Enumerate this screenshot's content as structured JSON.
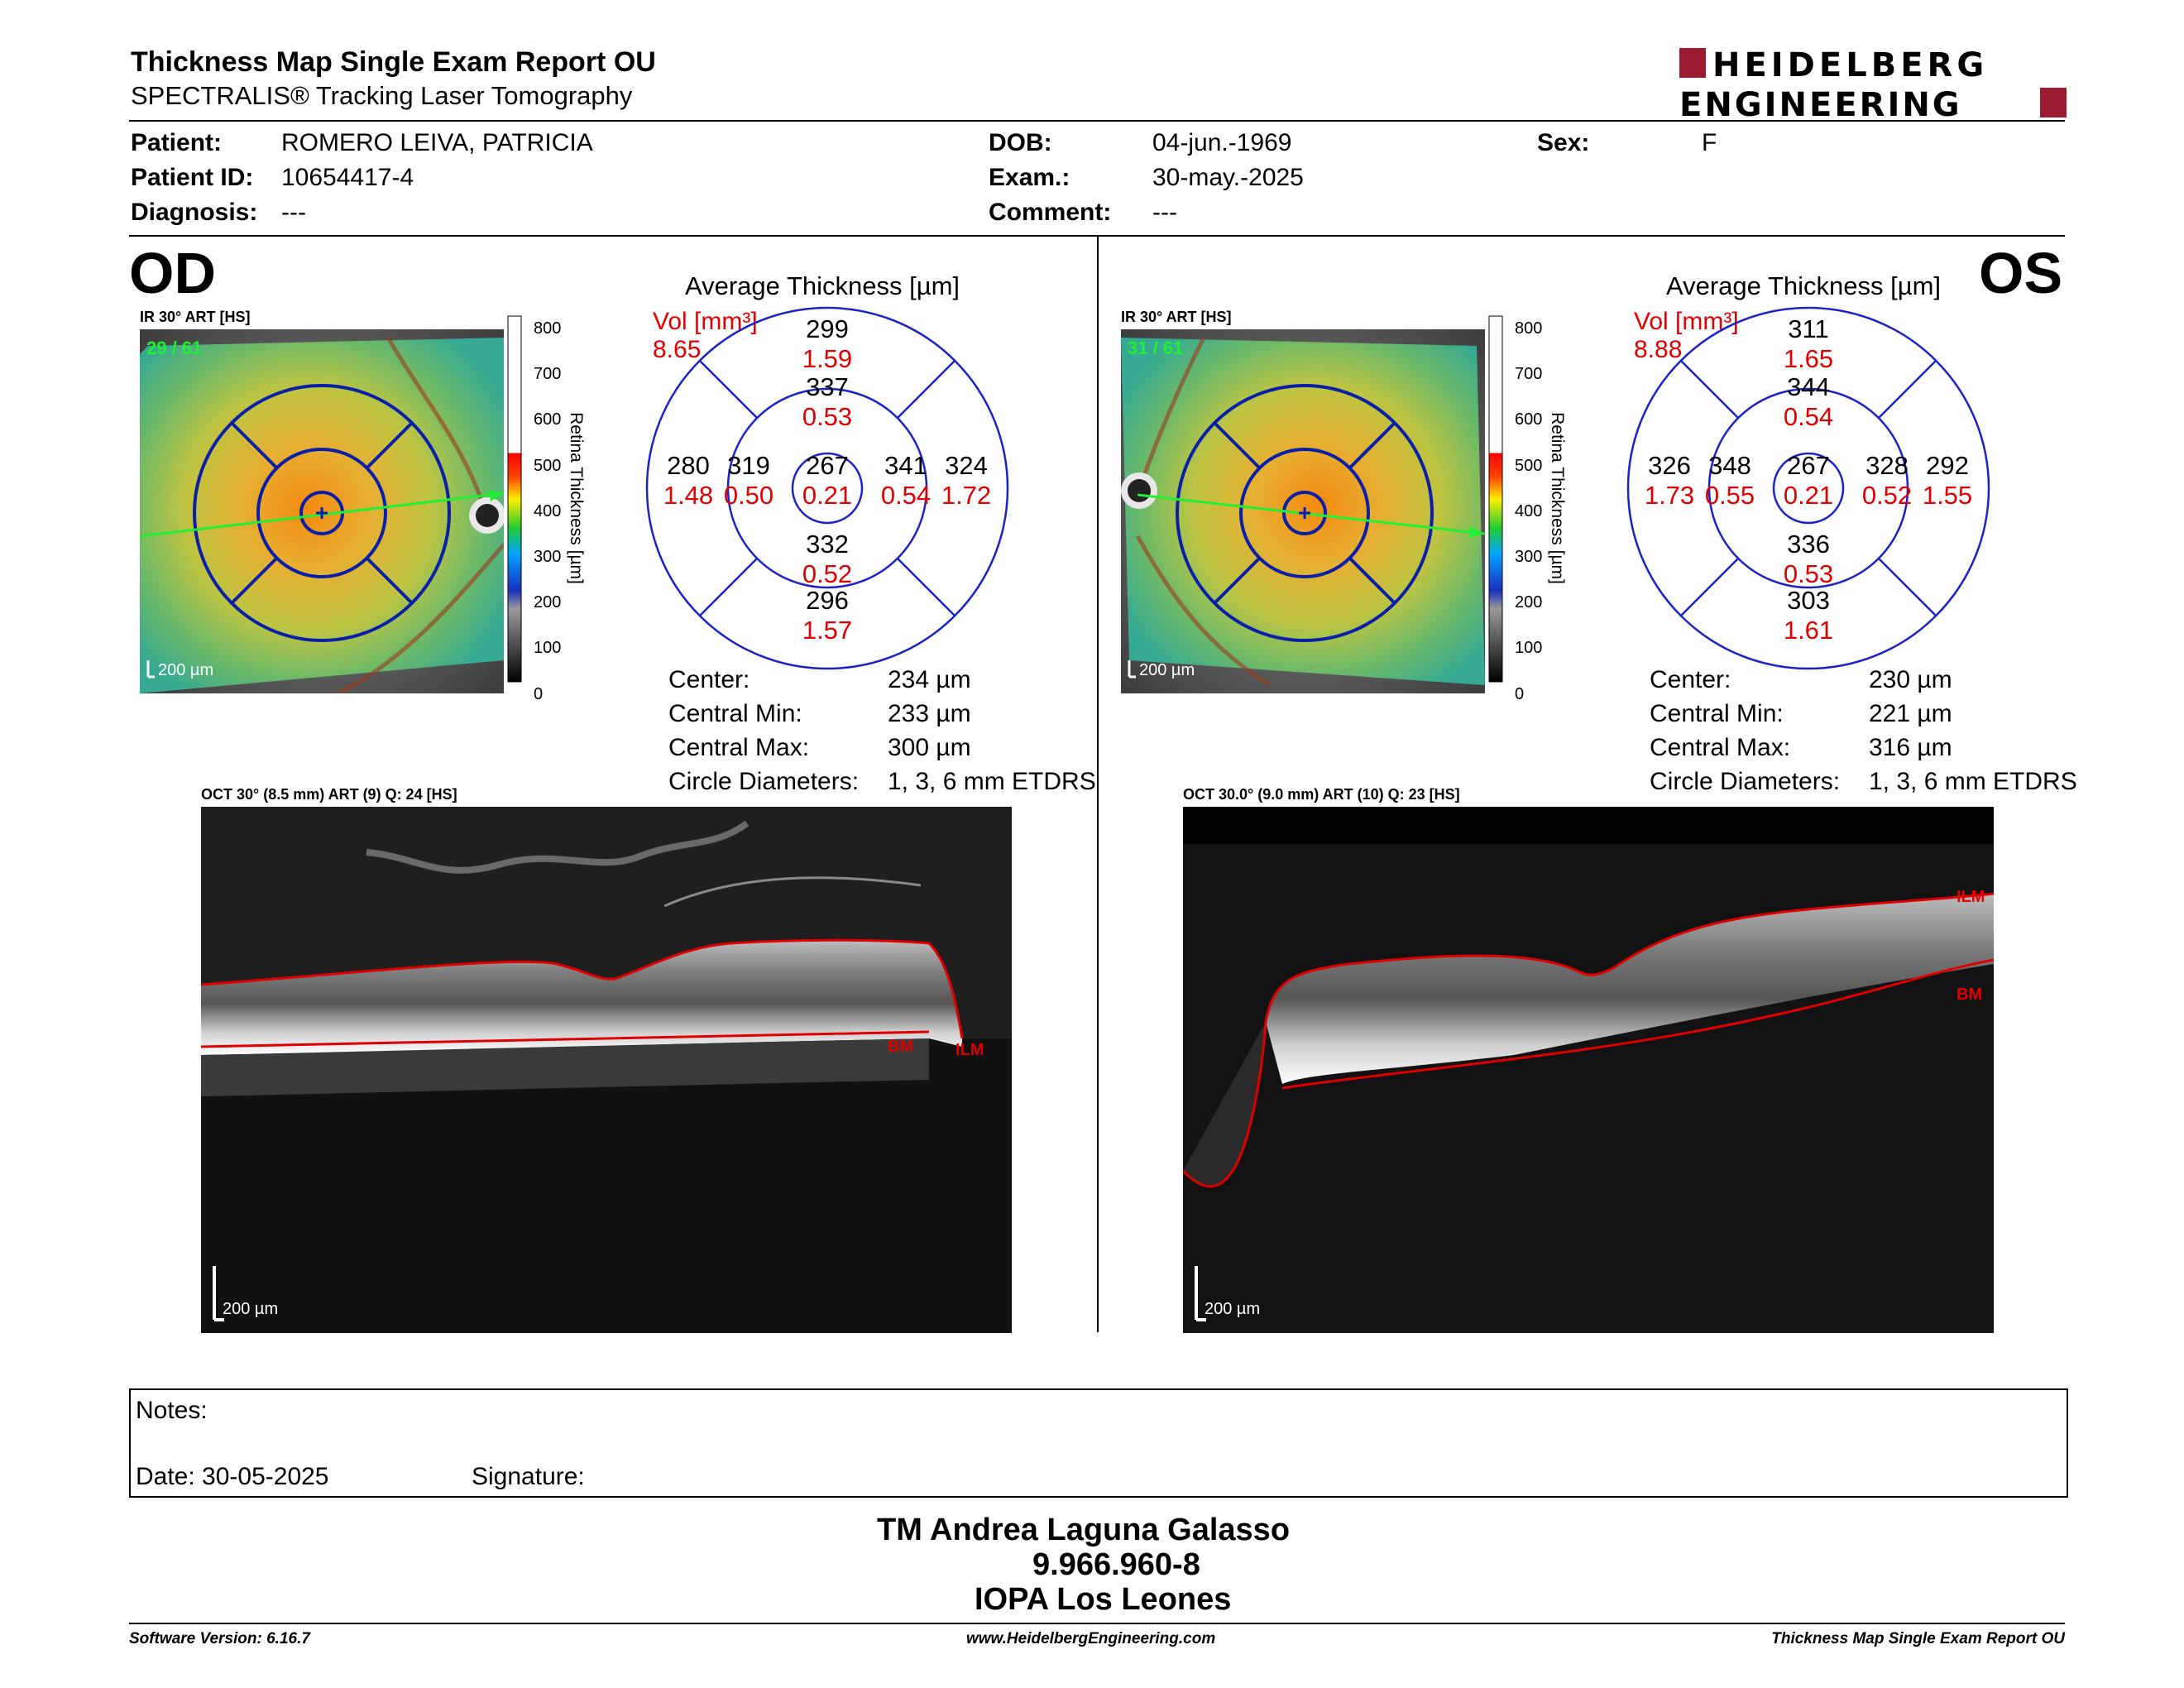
{
  "header": {
    "title": "Thickness Map Single Exam Report OU",
    "subtitle": "SPECTRALIS® Tracking Laser Tomography",
    "logo_line1": "HEIDELBERG",
    "logo_line2": "ENGINEERING",
    "logo_color": "#9b1b30"
  },
  "patient": {
    "patient_label": "Patient:",
    "patient_value": "ROMERO LEIVA, PATRICIA",
    "id_label": "Patient ID:",
    "id_value": "10654417-4",
    "diagnosis_label": "Diagnosis:",
    "diagnosis_value": "---",
    "dob_label": "DOB:",
    "dob_value": "04-jun.-1969",
    "exam_label": "Exam.:",
    "exam_value": "30-may.-2025",
    "comment_label": "Comment:",
    "comment_value": "---",
    "sex_label": "Sex:",
    "sex_value": "F"
  },
  "od": {
    "eye_label": "OD",
    "ir_caption": "IR 30° ART [HS]",
    "ir_counter": "29 / 61",
    "ir_scale": "200 µm",
    "colorbar_ticks": [
      "800",
      "700",
      "600",
      "500",
      "400",
      "300",
      "200",
      "100",
      "0"
    ],
    "colorbar_title": "Retina Thickness [µm]",
    "avg_title": "Average Thickness [µm]",
    "vol_label": "Vol [mm³]",
    "vol_total": "8.65",
    "grid": {
      "outer_top": {
        "t": "299",
        "v": "1.59"
      },
      "inner_top": {
        "t": "337",
        "v": "0.53"
      },
      "outer_left": {
        "t": "280",
        "v": "1.48"
      },
      "inner_left": {
        "t": "319",
        "v": "0.50"
      },
      "center": {
        "t": "267",
        "v": "0.21"
      },
      "inner_right": {
        "t": "341",
        "v": "0.54"
      },
      "outer_right": {
        "t": "324",
        "v": "1.72"
      },
      "inner_bottom": {
        "t": "332",
        "v": "0.52"
      },
      "outer_bottom": {
        "t": "296",
        "v": "1.57"
      }
    },
    "stats": [
      {
        "k": "Center:",
        "v": "234 µm"
      },
      {
        "k": "Central Min:",
        "v": "233 µm"
      },
      {
        "k": "Central Max:",
        "v": "300 µm"
      },
      {
        "k": "Circle Diameters:",
        "v": "1, 3, 6 mm ETDRS"
      }
    ],
    "oct_caption": "OCT 30° (8.5 mm) ART (9) Q: 24 [HS]",
    "oct_scale": "200 µm",
    "ilm_label": "ILM",
    "bm_label": "BM"
  },
  "os": {
    "eye_label": "OS",
    "ir_caption": "IR 30° ART [HS]",
    "ir_counter": "31 / 61",
    "ir_scale": "200 µm",
    "colorbar_ticks": [
      "800",
      "700",
      "600",
      "500",
      "400",
      "300",
      "200",
      "100",
      "0"
    ],
    "colorbar_title": "Retina Thickness [µm]",
    "avg_title": "Average Thickness [µm]",
    "vol_label": "Vol [mm³]",
    "vol_total": "8.88",
    "grid": {
      "outer_top": {
        "t": "311",
        "v": "1.65"
      },
      "inner_top": {
        "t": "344",
        "v": "0.54"
      },
      "outer_left": {
        "t": "326",
        "v": "1.73"
      },
      "inner_left": {
        "t": "348",
        "v": "0.55"
      },
      "center": {
        "t": "267",
        "v": "0.21"
      },
      "inner_right": {
        "t": "328",
        "v": "0.52"
      },
      "outer_right": {
        "t": "292",
        "v": "1.55"
      },
      "inner_bottom": {
        "t": "336",
        "v": "0.53"
      },
      "outer_bottom": {
        "t": "303",
        "v": "1.61"
      }
    },
    "stats": [
      {
        "k": "Center:",
        "v": "230 µm"
      },
      {
        "k": "Central Min:",
        "v": "221 µm"
      },
      {
        "k": "Central Max:",
        "v": "316 µm"
      },
      {
        "k": "Circle Diameters:",
        "v": "1, 3, 6 mm ETDRS"
      }
    ],
    "oct_caption": "OCT 30.0° (9.0 mm) ART (10) Q: 23 [HS]",
    "oct_scale": "200 µm",
    "ilm_label": "ILM",
    "bm_label": "BM"
  },
  "notes": {
    "notes_label": "Notes:",
    "date_label": "Date: 30-05-2025",
    "signature_label": "Signature:"
  },
  "signature_block": {
    "line1": "TM Andrea Laguna Galasso",
    "line2": "9.966.960-8",
    "line3": "IOPA Los Leones"
  },
  "footer": {
    "left": "Software Version: 6.16.7",
    "center": "www.HeidelbergEngineering.com",
    "right": "Thickness Map Single Exam Report OU"
  }
}
